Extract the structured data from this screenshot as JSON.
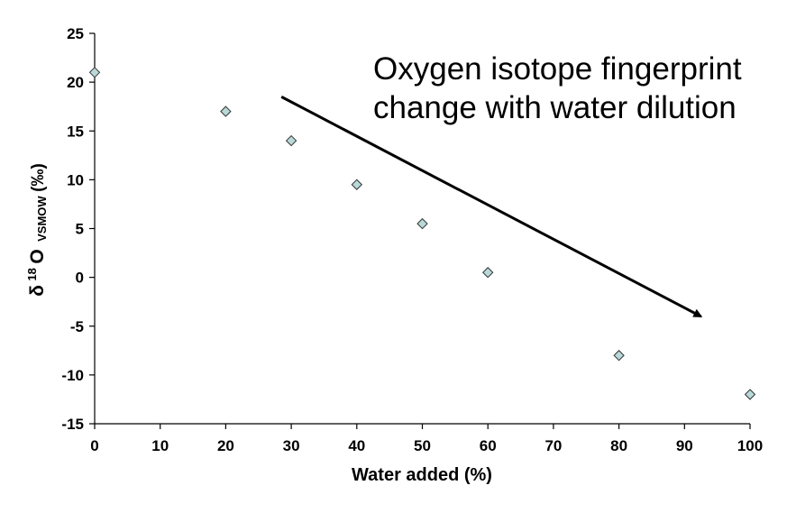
{
  "chart_data": {
    "type": "scatter",
    "xlabel": "Water added (%)",
    "ylabel": {
      "delta": "δ",
      "sup": "18",
      "base": "O",
      "sub": "VSMOW",
      "unit": " (‰)"
    },
    "xlim": [
      0,
      100
    ],
    "ylim": [
      -15,
      25
    ],
    "xticks": [
      0,
      10,
      20,
      30,
      40,
      50,
      60,
      70,
      80,
      90,
      100
    ],
    "yticks": [
      25,
      20,
      15,
      10,
      5,
      0,
      -5,
      -10,
      -15
    ],
    "grid": false,
    "marker": "diamond",
    "marker_color": "#b9d8d8",
    "series": [
      {
        "x": [
          0,
          20,
          30,
          40,
          50,
          60,
          80,
          100
        ],
        "y": [
          21,
          17,
          14,
          9.5,
          5.5,
          0.5,
          -8,
          -12
        ]
      }
    ],
    "annotation": {
      "lines": [
        "Oxygen isotope fingerprint",
        "change with water dilution"
      ],
      "arrow_start": [
        28.5,
        18.5
      ],
      "arrow_end": [
        92.5,
        -4
      ]
    }
  }
}
